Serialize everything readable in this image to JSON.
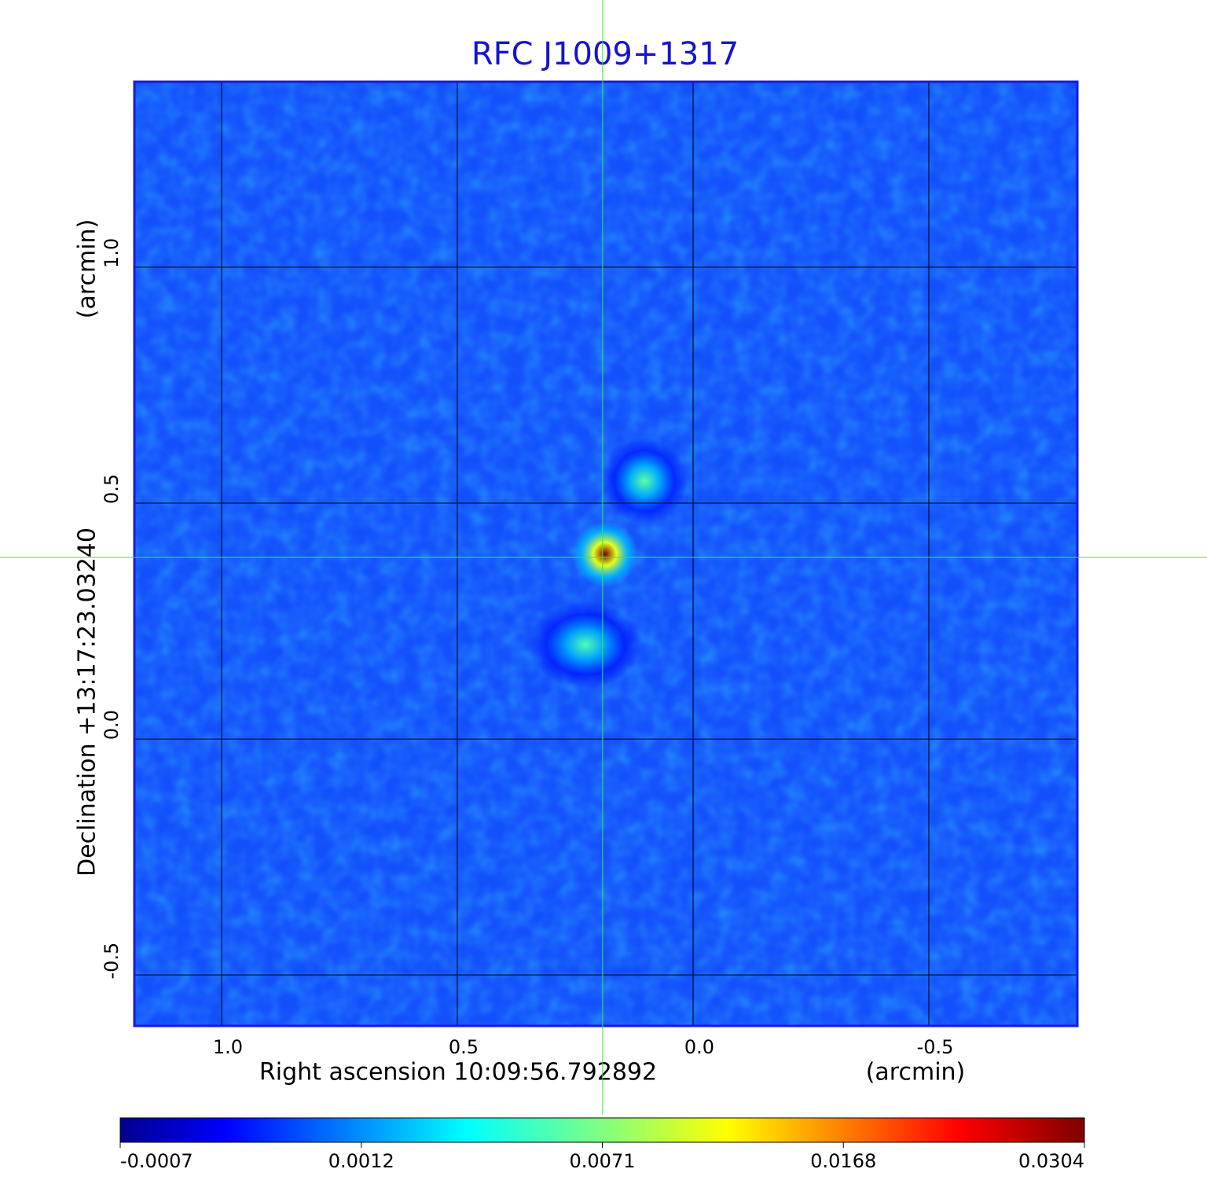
{
  "chart_data": {
    "type": "image",
    "title": "RFC J1009+1317",
    "xlabel": "Right ascension  10:09:56.792892",
    "xunit": "(arcmin)",
    "ylabel": "Declination  +13:17:23.03240",
    "yunit": "(arcmin)",
    "xlim": [
      1.185,
      -0.815
    ],
    "ylim": [
      -0.608,
      1.393
    ],
    "xticks": [
      {
        "value": 1,
        "label": "1.0"
      },
      0.5,
      {
        "value": 0,
        "label": "0.0"
      },
      -0.5
    ],
    "yticks": [
      {
        "value": 1,
        "label": "1.0"
      },
      0.5,
      {
        "value": 0,
        "label": "0.0"
      },
      -0.5
    ],
    "grid": true,
    "crosshair": {
      "x": 0.192,
      "y": 0.385
    },
    "colormap": "jet",
    "cbarlim": [
      -0.0007,
      0.0304
    ],
    "cbarticks": [
      -0.0007,
      0.0012,
      0.0071,
      0.0168,
      0.0304
    ],
    "sources": [
      {
        "x": 0.187,
        "y": 0.392,
        "peak": 0.0304
      },
      {
        "x": 0.103,
        "y": 0.547,
        "peak": 0.0062
      },
      {
        "x": 0.228,
        "y": 0.2,
        "peak": 0.0058
      }
    ]
  }
}
